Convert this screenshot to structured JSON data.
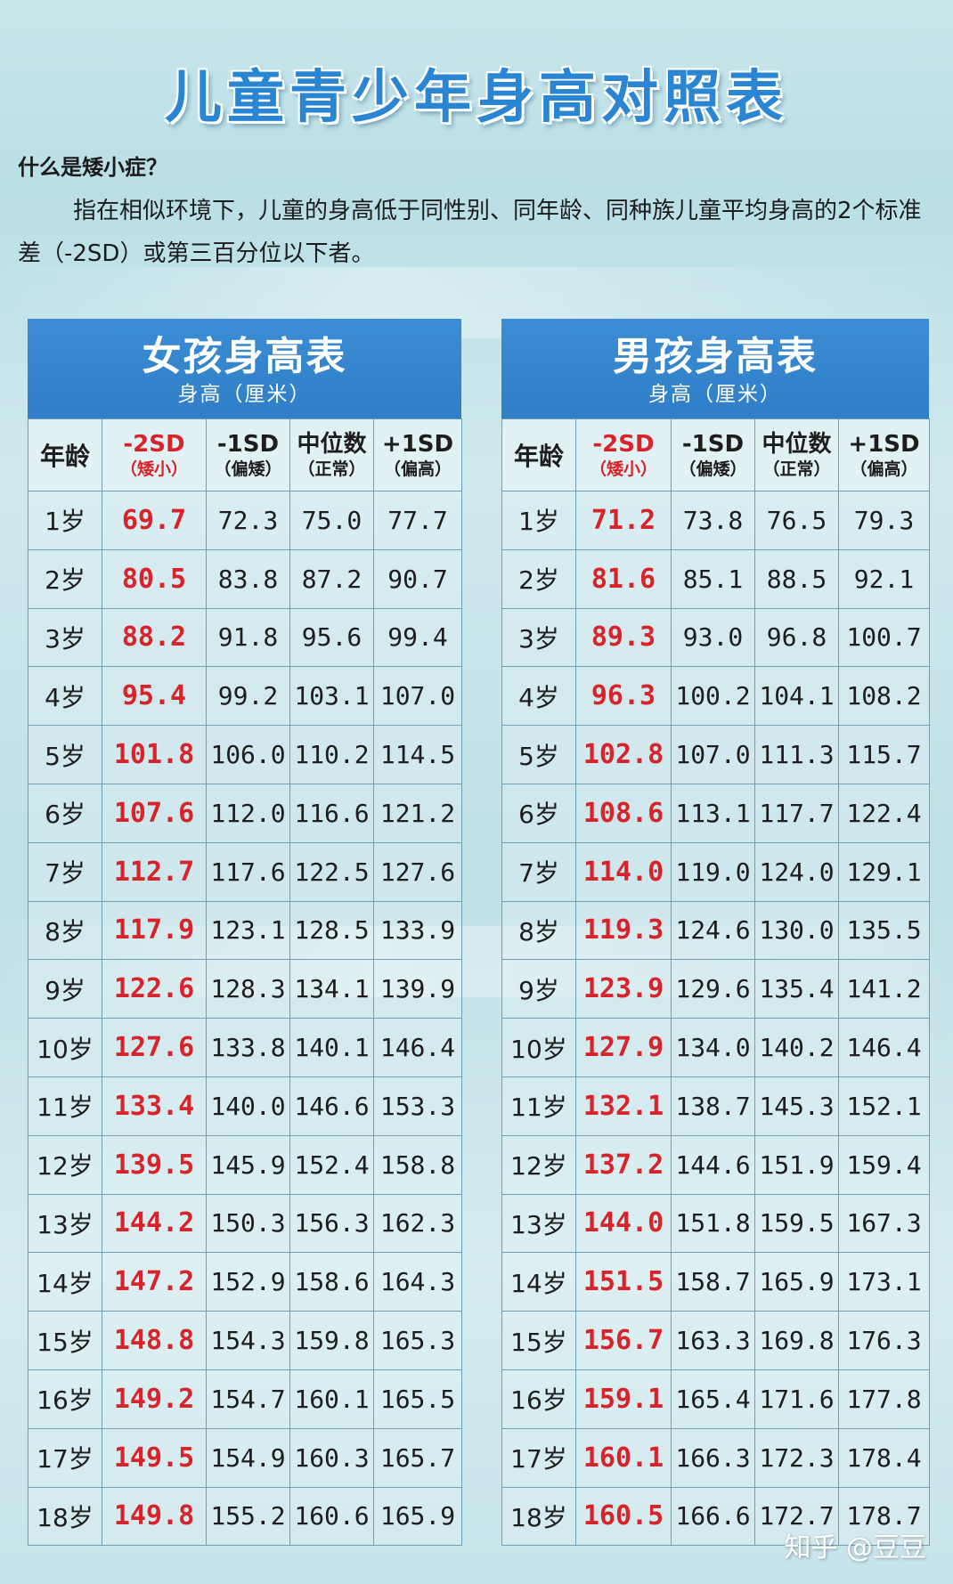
{
  "title": "儿童青少年身高对照表",
  "intro": {
    "question": "什么是矮小症？",
    "paragraph": "指在相似环境下，儿童的身高低于同性别、同年龄、同种族儿童平均身高的2个标准差（-2SD）或第三百分位以下者。"
  },
  "columns": {
    "age": "年龄",
    "sd_minus2": "-2SD",
    "sd_minus2_note": "（矮小）",
    "sd_minus1": "-1SD",
    "sd_minus1_note": "（偏矮）",
    "median": "中位数",
    "median_note": "（正常）",
    "sd_plus1": "+1SD",
    "sd_plus1_note": "（偏高）"
  },
  "girls": {
    "title": "女孩身高表",
    "subtitle": "身高（厘米）",
    "rows": [
      [
        "1岁",
        "69.7",
        "72.3",
        "75.0",
        "77.7"
      ],
      [
        "2岁",
        "80.5",
        "83.8",
        "87.2",
        "90.7"
      ],
      [
        "3岁",
        "88.2",
        "91.8",
        "95.6",
        "99.4"
      ],
      [
        "4岁",
        "95.4",
        "99.2",
        "103.1",
        "107.0"
      ],
      [
        "5岁",
        "101.8",
        "106.0",
        "110.2",
        "114.5"
      ],
      [
        "6岁",
        "107.6",
        "112.0",
        "116.6",
        "121.2"
      ],
      [
        "7岁",
        "112.7",
        "117.6",
        "122.5",
        "127.6"
      ],
      [
        "8岁",
        "117.9",
        "123.1",
        "128.5",
        "133.9"
      ],
      [
        "9岁",
        "122.6",
        "128.3",
        "134.1",
        "139.9"
      ],
      [
        "10岁",
        "127.6",
        "133.8",
        "140.1",
        "146.4"
      ],
      [
        "11岁",
        "133.4",
        "140.0",
        "146.6",
        "153.3"
      ],
      [
        "12岁",
        "139.5",
        "145.9",
        "152.4",
        "158.8"
      ],
      [
        "13岁",
        "144.2",
        "150.3",
        "156.3",
        "162.3"
      ],
      [
        "14岁",
        "147.2",
        "152.9",
        "158.6",
        "164.3"
      ],
      [
        "15岁",
        "148.8",
        "154.3",
        "159.8",
        "165.3"
      ],
      [
        "16岁",
        "149.2",
        "154.7",
        "160.1",
        "165.5"
      ],
      [
        "17岁",
        "149.5",
        "154.9",
        "160.3",
        "165.7"
      ],
      [
        "18岁",
        "149.8",
        "155.2",
        "160.6",
        "165.9"
      ]
    ]
  },
  "boys": {
    "title": "男孩身高表",
    "subtitle": "身高（厘米）",
    "rows": [
      [
        "1岁",
        "71.2",
        "73.8",
        "76.5",
        "79.3"
      ],
      [
        "2岁",
        "81.6",
        "85.1",
        "88.5",
        "92.1"
      ],
      [
        "3岁",
        "89.3",
        "93.0",
        "96.8",
        "100.7"
      ],
      [
        "4岁",
        "96.3",
        "100.2",
        "104.1",
        "108.2"
      ],
      [
        "5岁",
        "102.8",
        "107.0",
        "111.3",
        "115.7"
      ],
      [
        "6岁",
        "108.6",
        "113.1",
        "117.7",
        "122.4"
      ],
      [
        "7岁",
        "114.0",
        "119.0",
        "124.0",
        "129.1"
      ],
      [
        "8岁",
        "119.3",
        "124.6",
        "130.0",
        "135.5"
      ],
      [
        "9岁",
        "123.9",
        "129.6",
        "135.4",
        "141.2"
      ],
      [
        "10岁",
        "127.9",
        "134.0",
        "140.2",
        "146.4"
      ],
      [
        "11岁",
        "132.1",
        "138.7",
        "145.3",
        "152.1"
      ],
      [
        "12岁",
        "137.2",
        "144.6",
        "151.9",
        "159.4"
      ],
      [
        "13岁",
        "144.0",
        "151.8",
        "159.5",
        "167.3"
      ],
      [
        "14岁",
        "151.5",
        "158.7",
        "165.9",
        "173.1"
      ],
      [
        "15岁",
        "156.7",
        "163.3",
        "169.8",
        "176.3"
      ],
      [
        "16岁",
        "159.1",
        "165.4",
        "171.6",
        "177.8"
      ],
      [
        "17岁",
        "160.1",
        "166.3",
        "172.3",
        "178.4"
      ],
      [
        "18岁",
        "160.5",
        "166.6",
        "172.7",
        "178.7"
      ]
    ]
  },
  "watermark": "知乎 @豆豆",
  "colors": {
    "title_blue": "#2a86d2",
    "header_blue": "#3c8dd4",
    "short_red": "#d8232a"
  }
}
